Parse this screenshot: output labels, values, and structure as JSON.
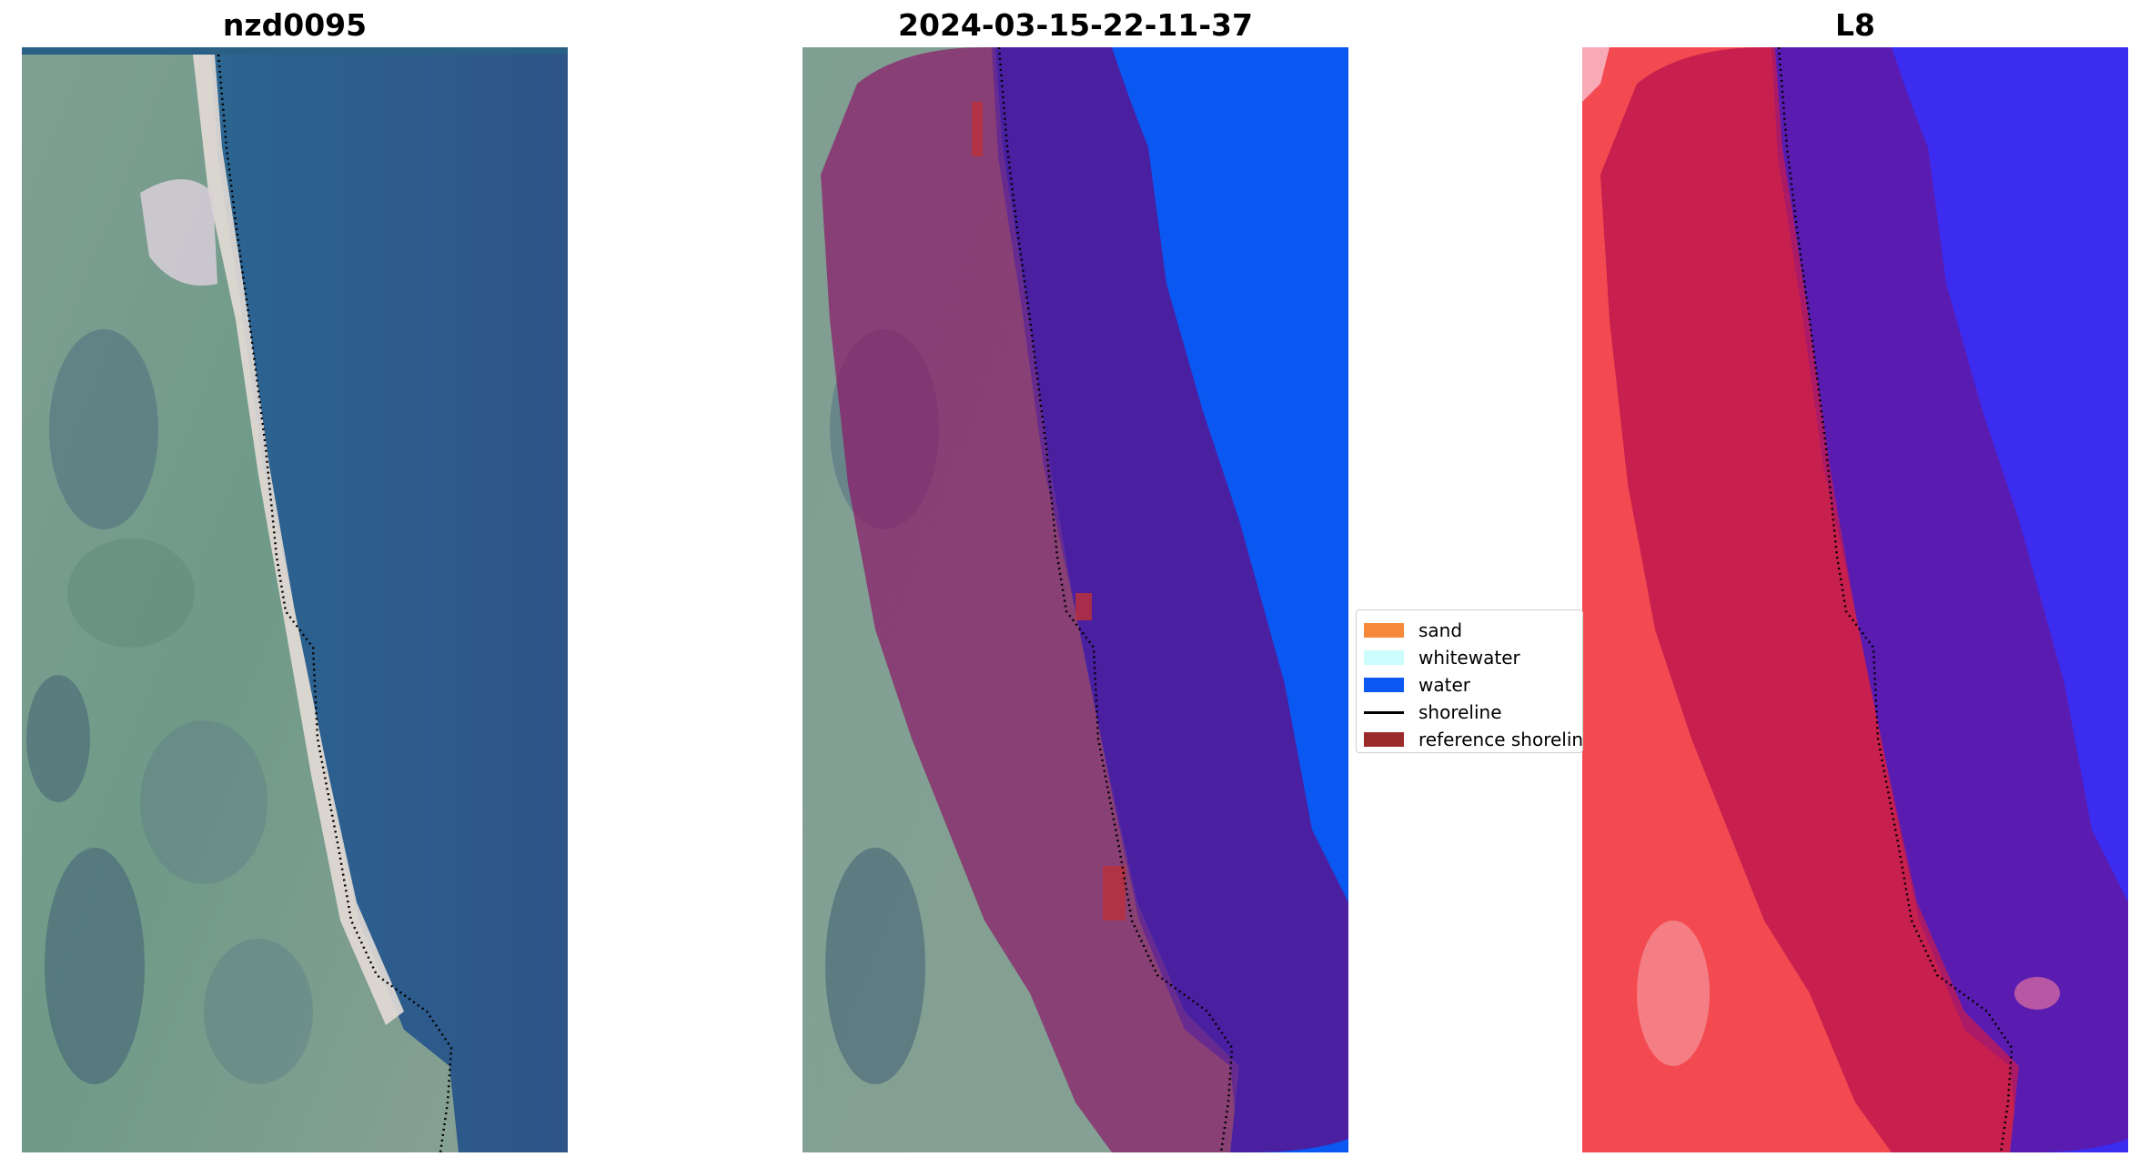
{
  "titles": {
    "left": "nzd0095",
    "middle": "2024-03-15-22-11-37",
    "right": "L8"
  },
  "legend": {
    "items": [
      {
        "label": "sand",
        "color": "#f7893b",
        "kind": "patch"
      },
      {
        "label": "whitewater",
        "color": "#ccfcfc",
        "kind": "patch"
      },
      {
        "label": "water",
        "color": "#0b57f2",
        "kind": "patch"
      },
      {
        "label": "shoreline",
        "color": "#000000",
        "kind": "line"
      },
      {
        "label": "reference shoreline",
        "color": "#9b2a2a",
        "kind": "patch"
      }
    ]
  },
  "colors": {
    "water_rgb": "#2f5f8f",
    "land_rgb": "#7f9f8a",
    "beach_sand": "#e8ddd0",
    "classified_water": "#0b57f2",
    "buffer_overlay": "#8a1a6a",
    "buffer_water": "#4a1fa0",
    "mndwi_land": "#f24a50",
    "mndwi_water": "#3b2cf0"
  }
}
